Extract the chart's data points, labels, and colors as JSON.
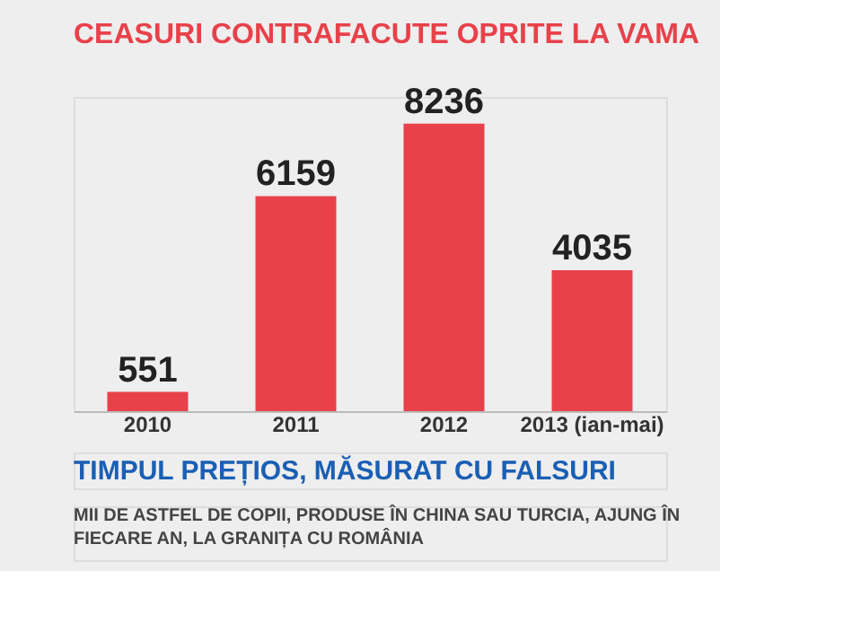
{
  "chart_data": {
    "type": "bar",
    "title": "CEASURI CONTRAFACUTE OPRITE LA VAMA",
    "categories": [
      "2010",
      "2011",
      "2012",
      "2013 (ian-mai)"
    ],
    "values": [
      551,
      6159,
      8236,
      4035
    ],
    "color": "#e8414a",
    "data_labels": true,
    "grid": false,
    "annotations": [
      "TIMPUL PREȚIOS, MĂSURAT CU FALSURI",
      "MII DE ASTFEL DE COPII, PRODUSE ÎN CHINA SAU TURCIA, AJUNG ÎN FIECARE AN, LA GRANIȚA CU ROMÂNIA"
    ]
  }
}
